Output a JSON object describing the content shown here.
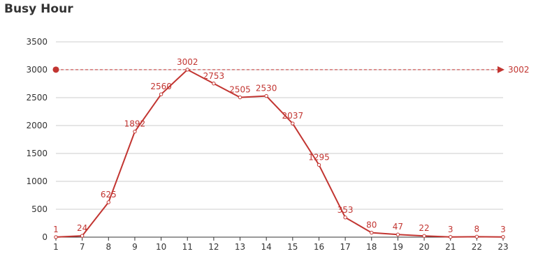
{
  "chart_data": {
    "type": "line",
    "title": "Busy Hour",
    "categories": [
      "1",
      "7",
      "8",
      "9",
      "10",
      "11",
      "12",
      "13",
      "14",
      "15",
      "16",
      "17",
      "18",
      "19",
      "20",
      "21",
      "22",
      "23"
    ],
    "series": [
      {
        "values": [
          1,
          24,
          625,
          1892,
          2560,
          3002,
          2753,
          2505,
          2530,
          2037,
          1295,
          353,
          80,
          47,
          22,
          3,
          8,
          3
        ],
        "data_labels": [
          "1",
          "24",
          "625",
          "1892",
          "2560",
          "3002",
          "2753",
          "2505",
          "2530",
          "2037",
          "1295",
          "353",
          "80",
          "47",
          "22",
          "3",
          "8",
          "3"
        ]
      }
    ],
    "ylim": [
      0,
      3500
    ],
    "yticks": [
      0,
      500,
      1000,
      1500,
      2000,
      2500,
      3000,
      3500
    ],
    "ytick_labels": [
      "0",
      "500",
      "1000",
      "1500",
      "2000",
      "2500",
      "3000",
      "3500"
    ],
    "grid": true,
    "mark_line": {
      "value": 3002,
      "label": "3002"
    },
    "colors": {
      "series": "#c23531",
      "grid": "#cccccc",
      "axis": "#333333"
    }
  }
}
